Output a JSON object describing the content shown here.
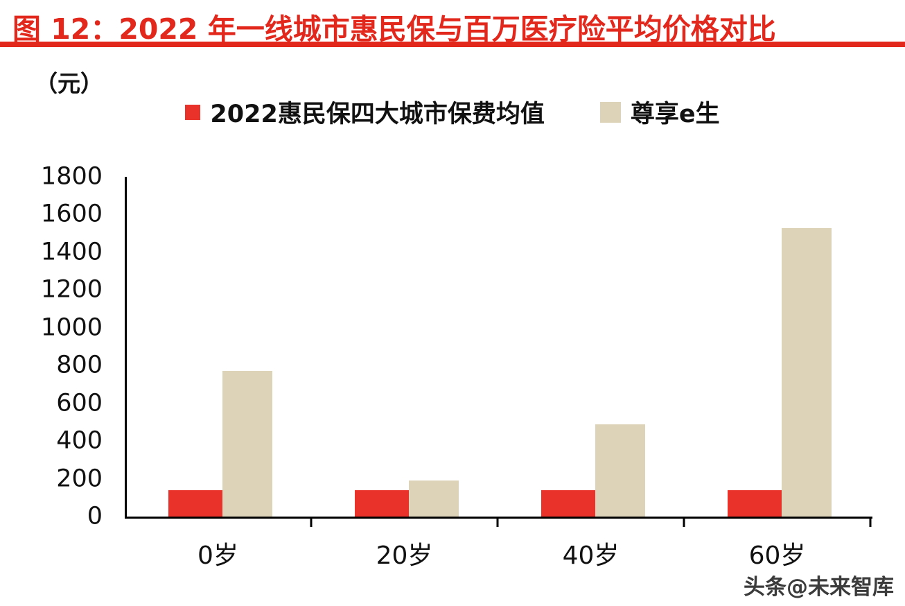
{
  "header": {
    "title": "图 12：2022 年一线城市惠民保与百万医疗险平均价格对比"
  },
  "axis_unit": "（元）",
  "watermark": "头条@未来智库",
  "colors": {
    "accent_red": "#e2271c",
    "bar_red": "#e8322a",
    "bar_tan": "#ddd3b8",
    "text": "#111111"
  },
  "chart_data": {
    "type": "bar",
    "title": "2022 年一线城市惠民保与百万医疗险平均价格对比",
    "categories": [
      "0岁",
      "20岁",
      "40岁",
      "60岁"
    ],
    "series": [
      {
        "name": "2022惠民保四大城市保费均值",
        "color": "#e8322a",
        "values": [
          140,
          140,
          140,
          140
        ]
      },
      {
        "name": "尊享e生",
        "color": "#ddd3b8",
        "values": [
          770,
          190,
          490,
          1530
        ]
      }
    ],
    "xlabel": "",
    "ylabel": "（元）",
    "ylim": [
      0,
      1800
    ],
    "yticks": [
      0,
      200,
      400,
      600,
      800,
      1000,
      1200,
      1400,
      1600,
      1800
    ],
    "grid": false,
    "legend_position": "top"
  }
}
